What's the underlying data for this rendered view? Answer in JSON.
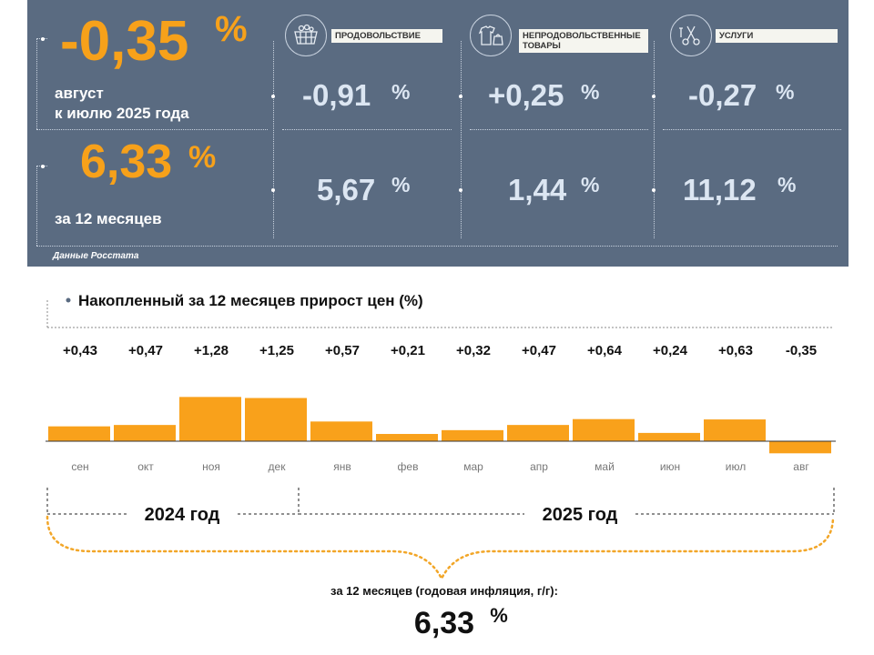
{
  "summary": {
    "monthly": {
      "value": "-0,35",
      "unit": "%",
      "caption_line1": "август",
      "caption_line2": "к июлю 2025 года"
    },
    "annual": {
      "value": "6,33",
      "unit": "%",
      "caption": "за 12 месяцев"
    },
    "source": "Данные Росстата"
  },
  "categories": [
    {
      "label": "ПРОДОВОЛЬСТВИЕ",
      "icon": "food-basket-icon",
      "monthly": "-0,91",
      "annual": "5,67",
      "unit": "%"
    },
    {
      "label": "НЕПРОДОВОЛЬСТВЕННЫЕ ТОВАРЫ",
      "icon": "clothing-icon",
      "monthly": "+0,25",
      "annual": "1,44",
      "unit": "%"
    },
    {
      "label": "УСЛУГИ",
      "icon": "scissors-icon",
      "monthly": "-0,27",
      "annual": "11,12",
      "unit": "%"
    }
  ],
  "chart_data": {
    "type": "bar",
    "title": "Накопленный за 12 месяцев прирост цен (%)",
    "categories": [
      "сен",
      "окт",
      "ноя",
      "дек",
      "янв",
      "фев",
      "мар",
      "апр",
      "май",
      "июн",
      "июл",
      "авг"
    ],
    "values": [
      0.43,
      0.47,
      1.28,
      1.25,
      0.57,
      0.21,
      0.32,
      0.47,
      0.64,
      0.24,
      0.63,
      -0.35
    ],
    "value_labels": [
      "+0,43",
      "+0,47",
      "+1,28",
      "+1,25",
      "+0,57",
      "+0,21",
      "+0,32",
      "+0,47",
      "+0,64",
      "+0,24",
      "+0,63",
      "-0,35"
    ],
    "bar_color": "#f9a11b",
    "year_groups": [
      {
        "label": "2024 год",
        "from": 0,
        "to": 3
      },
      {
        "label": "2025 год",
        "from": 4,
        "to": 11
      }
    ],
    "ylim": [
      -0.4,
      1.4
    ]
  },
  "footer": {
    "caption": "за 12 месяцев (годовая инфляция, г/г):",
    "value": "6,33",
    "unit": "%"
  },
  "colors": {
    "panel": "#5a6b81",
    "accent": "#f7a11a",
    "cell_text": "#dce6f2"
  }
}
